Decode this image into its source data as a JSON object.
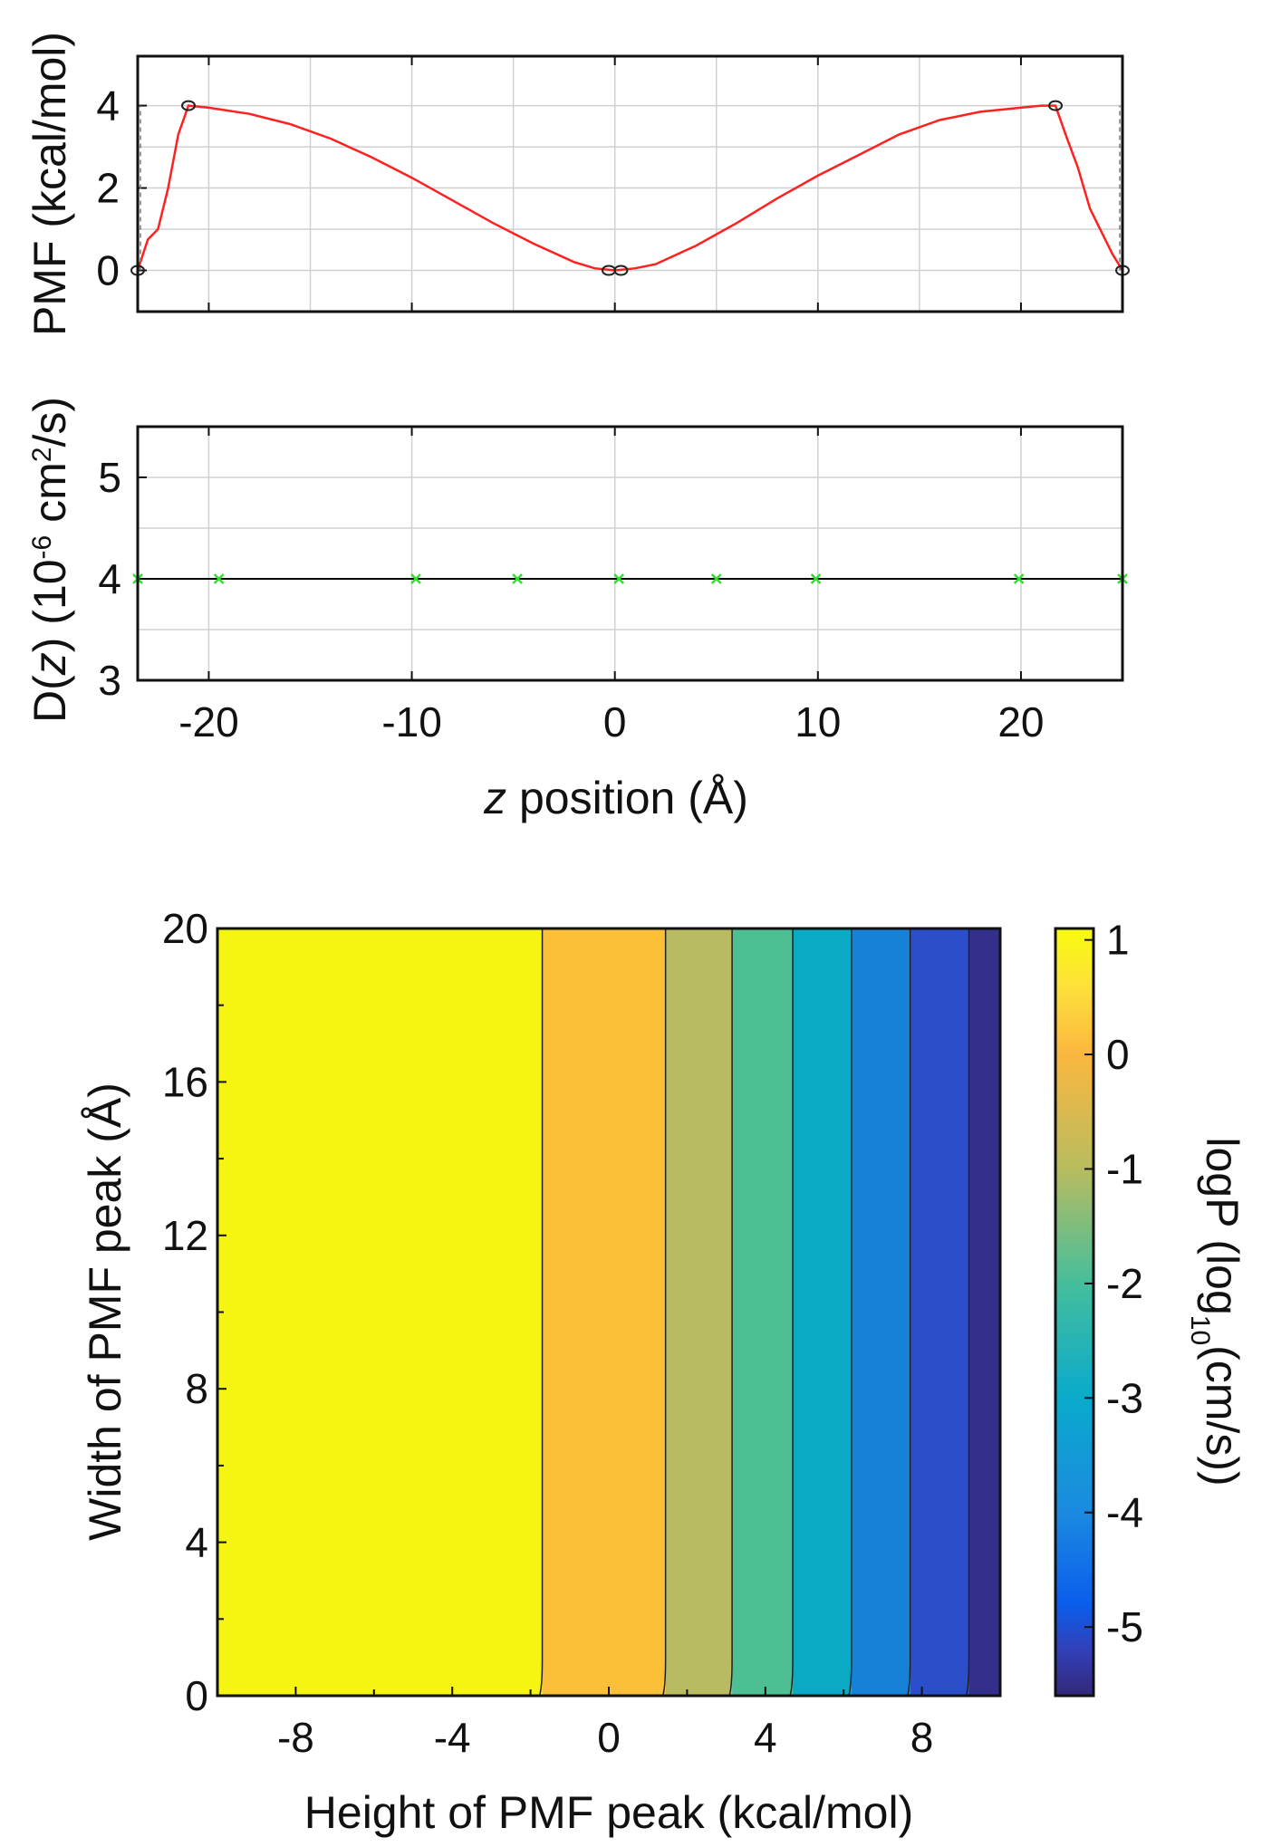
{
  "chart_data": [
    {
      "type": "line",
      "id": "pmf",
      "title": "",
      "xlabel": "",
      "ylabel": "PMF (kcal/mol)",
      "xlim": [
        -23.5,
        25
      ],
      "ylim": [
        -1,
        5.2
      ],
      "xticks": [
        -20,
        -10,
        0,
        10,
        20
      ],
      "yticks": [
        0,
        2,
        4
      ],
      "ytick_labels": [
        "0",
        "2",
        "4"
      ],
      "grid": true,
      "series": [
        {
          "name": "PMF",
          "color": "#ff2020",
          "x": [
            -23.5,
            -23.0,
            -22.5,
            -22.0,
            -21.5,
            -21.0,
            -20,
            -18,
            -16,
            -14,
            -12,
            -10,
            -8,
            -6,
            -4,
            -2,
            -1,
            0,
            1,
            2,
            4,
            6,
            8,
            10,
            12,
            14,
            16,
            18,
            20,
            21,
            21.7,
            22.2,
            22.8,
            23.4,
            24.0,
            24.5,
            25.0
          ],
          "y": [
            0.0,
            0.75,
            1.0,
            2.0,
            3.3,
            4.0,
            3.95,
            3.8,
            3.55,
            3.2,
            2.75,
            2.25,
            1.7,
            1.15,
            0.65,
            0.2,
            0.05,
            0.0,
            0.05,
            0.15,
            0.6,
            1.15,
            1.75,
            2.3,
            2.8,
            3.3,
            3.65,
            3.85,
            3.95,
            4.0,
            4.0,
            3.3,
            2.5,
            1.5,
            0.9,
            0.4,
            0.0
          ]
        }
      ],
      "markers": [
        {
          "x": -23.5,
          "y": 0
        },
        {
          "x": -21.0,
          "y": 4
        },
        {
          "x": -0.3,
          "y": 0
        },
        {
          "x": 0.3,
          "y": 0
        },
        {
          "x": 21.7,
          "y": 4
        },
        {
          "x": 25.0,
          "y": 0
        }
      ]
    },
    {
      "type": "line",
      "id": "diffusion",
      "title": "",
      "xlabel": "z position (Å)",
      "xlabel_italic": "z",
      "xlabel_rest": " position (Å)",
      "ylabel": "D(z) (10⁻⁶ cm²/s)",
      "ylabel_parts": {
        "pre": "D(",
        "italic": "z",
        "mid": ") (10",
        "sup1": "-6",
        "mid2": " cm",
        "sup2": "2",
        "post": "/s)"
      },
      "xlim": [
        -23.5,
        25
      ],
      "ylim": [
        3,
        5.5
      ],
      "xticks": [
        -20,
        -10,
        0,
        10,
        20
      ],
      "xtick_labels": [
        "-20",
        "-10",
        "0",
        "10",
        "20"
      ],
      "yticks": [
        3,
        4,
        5
      ],
      "ytick_labels": [
        "3",
        "4",
        "5"
      ],
      "grid": true,
      "series": [
        {
          "name": "D(z)",
          "color": "#000000",
          "marker_color": "#33dd33",
          "x": [
            -23.5,
            -19.5,
            -9.8,
            -4.8,
            0.2,
            5.0,
            9.9,
            19.9,
            25.0
          ],
          "y": [
            4,
            4,
            4,
            4,
            4,
            4,
            4,
            4,
            4
          ]
        }
      ]
    },
    {
      "type": "heatmap",
      "id": "logP",
      "title": "",
      "xlabel": "Height of PMF peak (kcal/mol)",
      "ylabel": "Width of PMF peak (Å)",
      "xlim": [
        -10,
        10
      ],
      "ylim": [
        0,
        20
      ],
      "xticks": [
        -8,
        -4,
        0,
        4,
        8
      ],
      "xtick_labels": [
        "-8",
        "-4",
        "0",
        "4",
        "8"
      ],
      "yticks": [
        0,
        4,
        8,
        12,
        16,
        20
      ],
      "ytick_labels": [
        "0",
        "4",
        "8",
        "12",
        "16",
        "20"
      ],
      "bands": [
        {
          "x0": -10,
          "x1": -1.7,
          "value": 1.0,
          "color": "#f5f511"
        },
        {
          "x0": -1.7,
          "x1": 1.45,
          "value": 0.0,
          "color": "#fbbf38"
        },
        {
          "x0": 1.45,
          "x1": 3.15,
          "value": -1.0,
          "color": "#b9bb63"
        },
        {
          "x0": 3.15,
          "x1": 4.7,
          "value": -2.0,
          "color": "#4ebf92"
        },
        {
          "x0": 4.7,
          "x1": 6.2,
          "value": -3.0,
          "color": "#0aa9c4"
        },
        {
          "x0": 6.2,
          "x1": 7.7,
          "value": -4.0,
          "color": "#1681d6"
        },
        {
          "x0": 7.7,
          "x1": 9.2,
          "value": -5.0,
          "color": "#2b4fca"
        },
        {
          "x0": 9.2,
          "x1": 10,
          "value": -5.5,
          "color": "#33308c"
        }
      ],
      "colorbar": {
        "label": "logP (log10(cm/s))",
        "label_parts": {
          "pre": "logP (log",
          "sub": "10",
          "post": "(cm/s))"
        },
        "range": [
          -5.6,
          1.1
        ],
        "ticks": [
          1,
          0,
          -1,
          -2,
          -3,
          -4,
          -5
        ],
        "tick_labels": [
          "1",
          "0",
          "-1",
          "-2",
          "-3",
          "-4",
          "-5"
        ],
        "stops": [
          {
            "v": 1.1,
            "color": "#f9fb0e"
          },
          {
            "v": 0.6,
            "color": "#fde13a"
          },
          {
            "v": 0.0,
            "color": "#fbb73f"
          },
          {
            "v": -1.0,
            "color": "#b8bc5f"
          },
          {
            "v": -2.0,
            "color": "#45be9c"
          },
          {
            "v": -3.0,
            "color": "#0aaacc"
          },
          {
            "v": -4.0,
            "color": "#1b8ae0"
          },
          {
            "v": -4.8,
            "color": "#0a5eec"
          },
          {
            "v": -5.2,
            "color": "#3240b8"
          },
          {
            "v": -5.6,
            "color": "#33287a"
          }
        ]
      }
    }
  ]
}
